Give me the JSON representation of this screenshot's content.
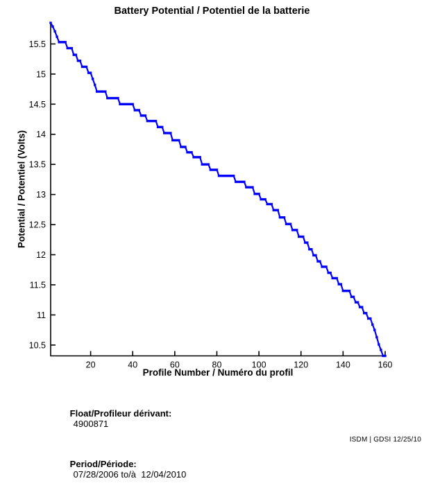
{
  "chart_data": {
    "type": "line",
    "title": "Battery Potential / Potentiel de la batterie",
    "xlabel": "Profile Number / Numéro du profil",
    "ylabel": "Potential / Potentiel (Volts)",
    "x_ticks": [
      20,
      40,
      60,
      80,
      100,
      120,
      140,
      160
    ],
    "y_ticks": [
      10.5,
      11,
      11.5,
      12,
      12.5,
      13,
      13.5,
      14,
      14.5,
      15,
      15.5
    ],
    "xlim": [
      1,
      160
    ],
    "ylim": [
      10.32,
      15.85
    ],
    "grid": false,
    "legend": "none",
    "line_color": "#0000ff",
    "marker": "dot",
    "x_unit": "profile_number",
    "y_unit": "volts",
    "series": [
      {
        "name": "Battery Potential",
        "steps_format": "[start_profile, end_profile, volts]",
        "steps": [
          [
            1,
            1,
            15.85
          ],
          [
            2,
            2,
            15.79
          ],
          [
            3,
            3,
            15.71
          ],
          [
            4,
            4,
            15.62
          ],
          [
            5,
            8,
            15.53
          ],
          [
            9,
            11,
            15.43
          ],
          [
            12,
            13,
            15.32
          ],
          [
            14,
            15,
            15.22
          ],
          [
            16,
            18,
            15.12
          ],
          [
            19,
            20,
            15.02
          ],
          [
            21,
            21,
            14.92
          ],
          [
            22,
            22,
            14.82
          ],
          [
            23,
            27,
            14.71
          ],
          [
            28,
            33,
            14.6
          ],
          [
            34,
            40,
            14.5
          ],
          [
            41,
            43,
            14.4
          ],
          [
            44,
            46,
            14.31
          ],
          [
            47,
            51,
            14.22
          ],
          [
            52,
            54,
            14.12
          ],
          [
            55,
            58,
            14.02
          ],
          [
            59,
            62,
            13.9
          ],
          [
            63,
            65,
            13.79
          ],
          [
            66,
            68,
            13.7
          ],
          [
            69,
            72,
            13.62
          ],
          [
            73,
            76,
            13.5
          ],
          [
            77,
            80,
            13.41
          ],
          [
            81,
            88,
            13.31
          ],
          [
            89,
            93,
            13.21
          ],
          [
            94,
            97,
            13.12
          ],
          [
            98,
            100,
            13.01
          ],
          [
            101,
            103,
            12.92
          ],
          [
            104,
            106,
            12.84
          ],
          [
            107,
            109,
            12.74
          ],
          [
            110,
            112,
            12.62
          ],
          [
            113,
            115,
            12.51
          ],
          [
            116,
            118,
            12.41
          ],
          [
            119,
            121,
            12.3
          ],
          [
            122,
            123,
            12.2
          ],
          [
            124,
            125,
            12.09
          ],
          [
            126,
            127,
            11.99
          ],
          [
            128,
            129,
            11.89
          ],
          [
            130,
            132,
            11.8
          ],
          [
            133,
            134,
            11.7
          ],
          [
            135,
            137,
            11.61
          ],
          [
            138,
            139,
            11.51
          ],
          [
            140,
            143,
            11.4
          ],
          [
            144,
            145,
            11.3
          ],
          [
            146,
            147,
            11.21
          ],
          [
            148,
            149,
            11.13
          ],
          [
            150,
            151,
            11.03
          ],
          [
            152,
            153,
            10.94
          ],
          [
            154,
            154,
            10.84
          ],
          [
            155,
            155,
            10.75
          ],
          [
            156,
            156,
            10.63
          ],
          [
            157,
            157,
            10.51
          ],
          [
            158,
            158,
            10.42
          ],
          [
            159,
            160,
            10.32
          ]
        ]
      }
    ]
  },
  "annotations": {
    "float_label": "Float/Profileur dérivant:",
    "float_value": "4900871",
    "period_label": "Period/Période:",
    "period_value": "07/28/2006 to/à  12/04/2010"
  },
  "footer": {
    "credit": "ISDM | GDSI 12/25/10"
  }
}
